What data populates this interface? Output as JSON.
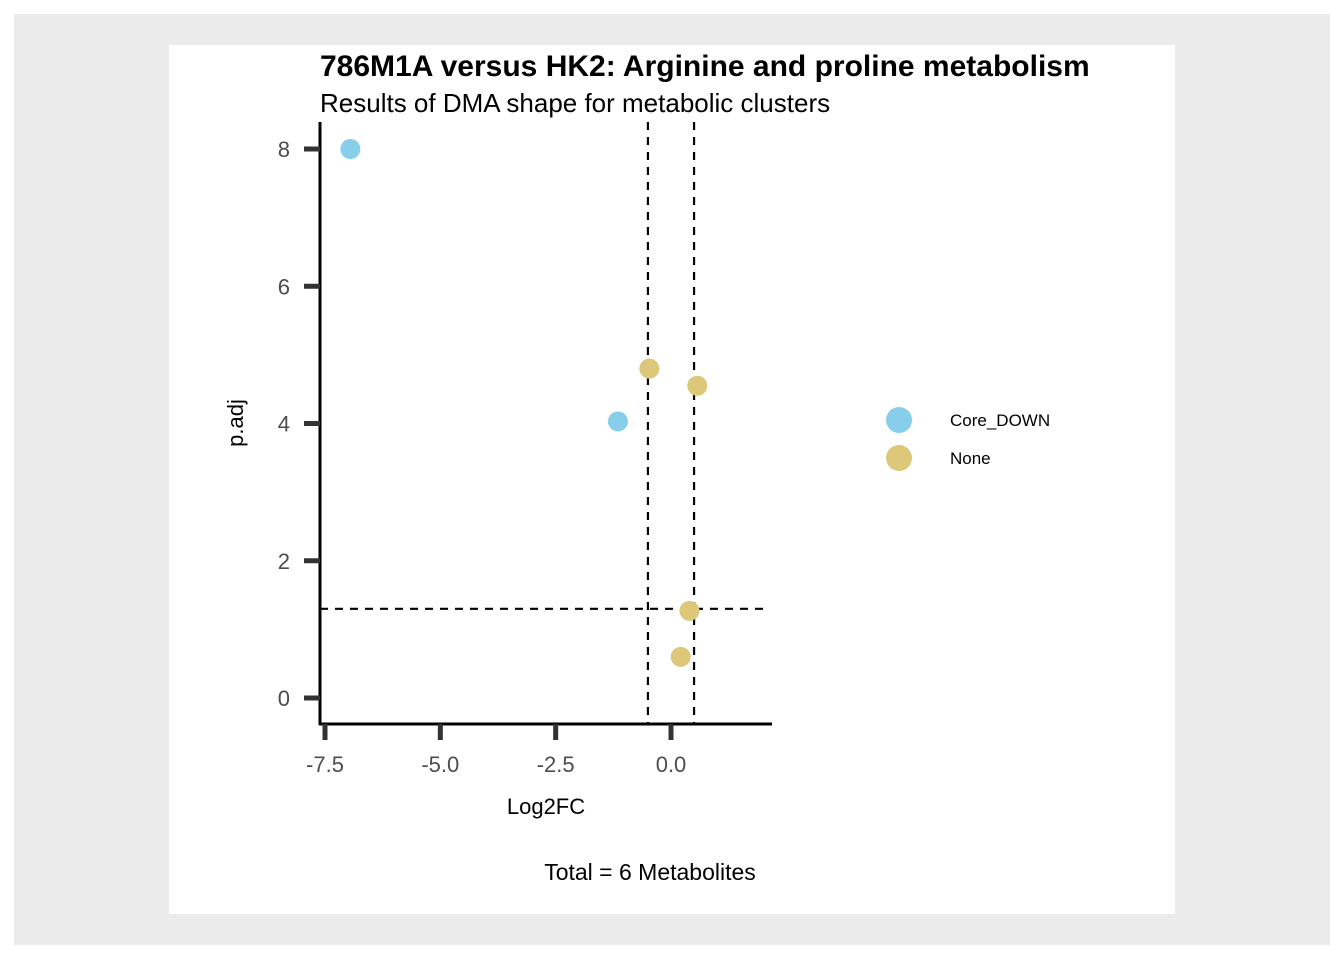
{
  "chart_data": {
    "type": "scatter",
    "title": "786M1A versus HK2: Arginine and proline metabolism",
    "subtitle": "Results of DMA shape for metabolic clusters",
    "xlabel": "Log2FC",
    "ylabel": "p.adj",
    "caption": "Total = 6 Metabolites",
    "xlim": [
      -7.75,
      2.2
    ],
    "ylim": [
      -0.4,
      8.4
    ],
    "x_ticks": [
      -7.5,
      -5.0,
      -2.5,
      0.0
    ],
    "x_tick_labels": [
      "-7.5",
      "-5.0",
      "-2.5",
      "0.0"
    ],
    "y_ticks": [
      0,
      2,
      4,
      6,
      8
    ],
    "y_tick_labels": [
      "0",
      "2",
      "4",
      "6",
      "8"
    ],
    "vlines": [
      -0.5,
      0.5
    ],
    "hlines": [
      1.3
    ],
    "grid": false,
    "legend_position": "right",
    "series": [
      {
        "name": "Core_DOWN",
        "color": "#87ceeb",
        "points": [
          {
            "x": -6.95,
            "y": 8.0
          },
          {
            "x": -1.15,
            "y": 4.03
          }
        ]
      },
      {
        "name": "None",
        "color": "#dcc878",
        "points": [
          {
            "x": -0.47,
            "y": 4.8
          },
          {
            "x": 0.57,
            "y": 4.55
          },
          {
            "x": 0.4,
            "y": 1.27
          },
          {
            "x": 0.21,
            "y": 0.6
          }
        ]
      }
    ]
  }
}
